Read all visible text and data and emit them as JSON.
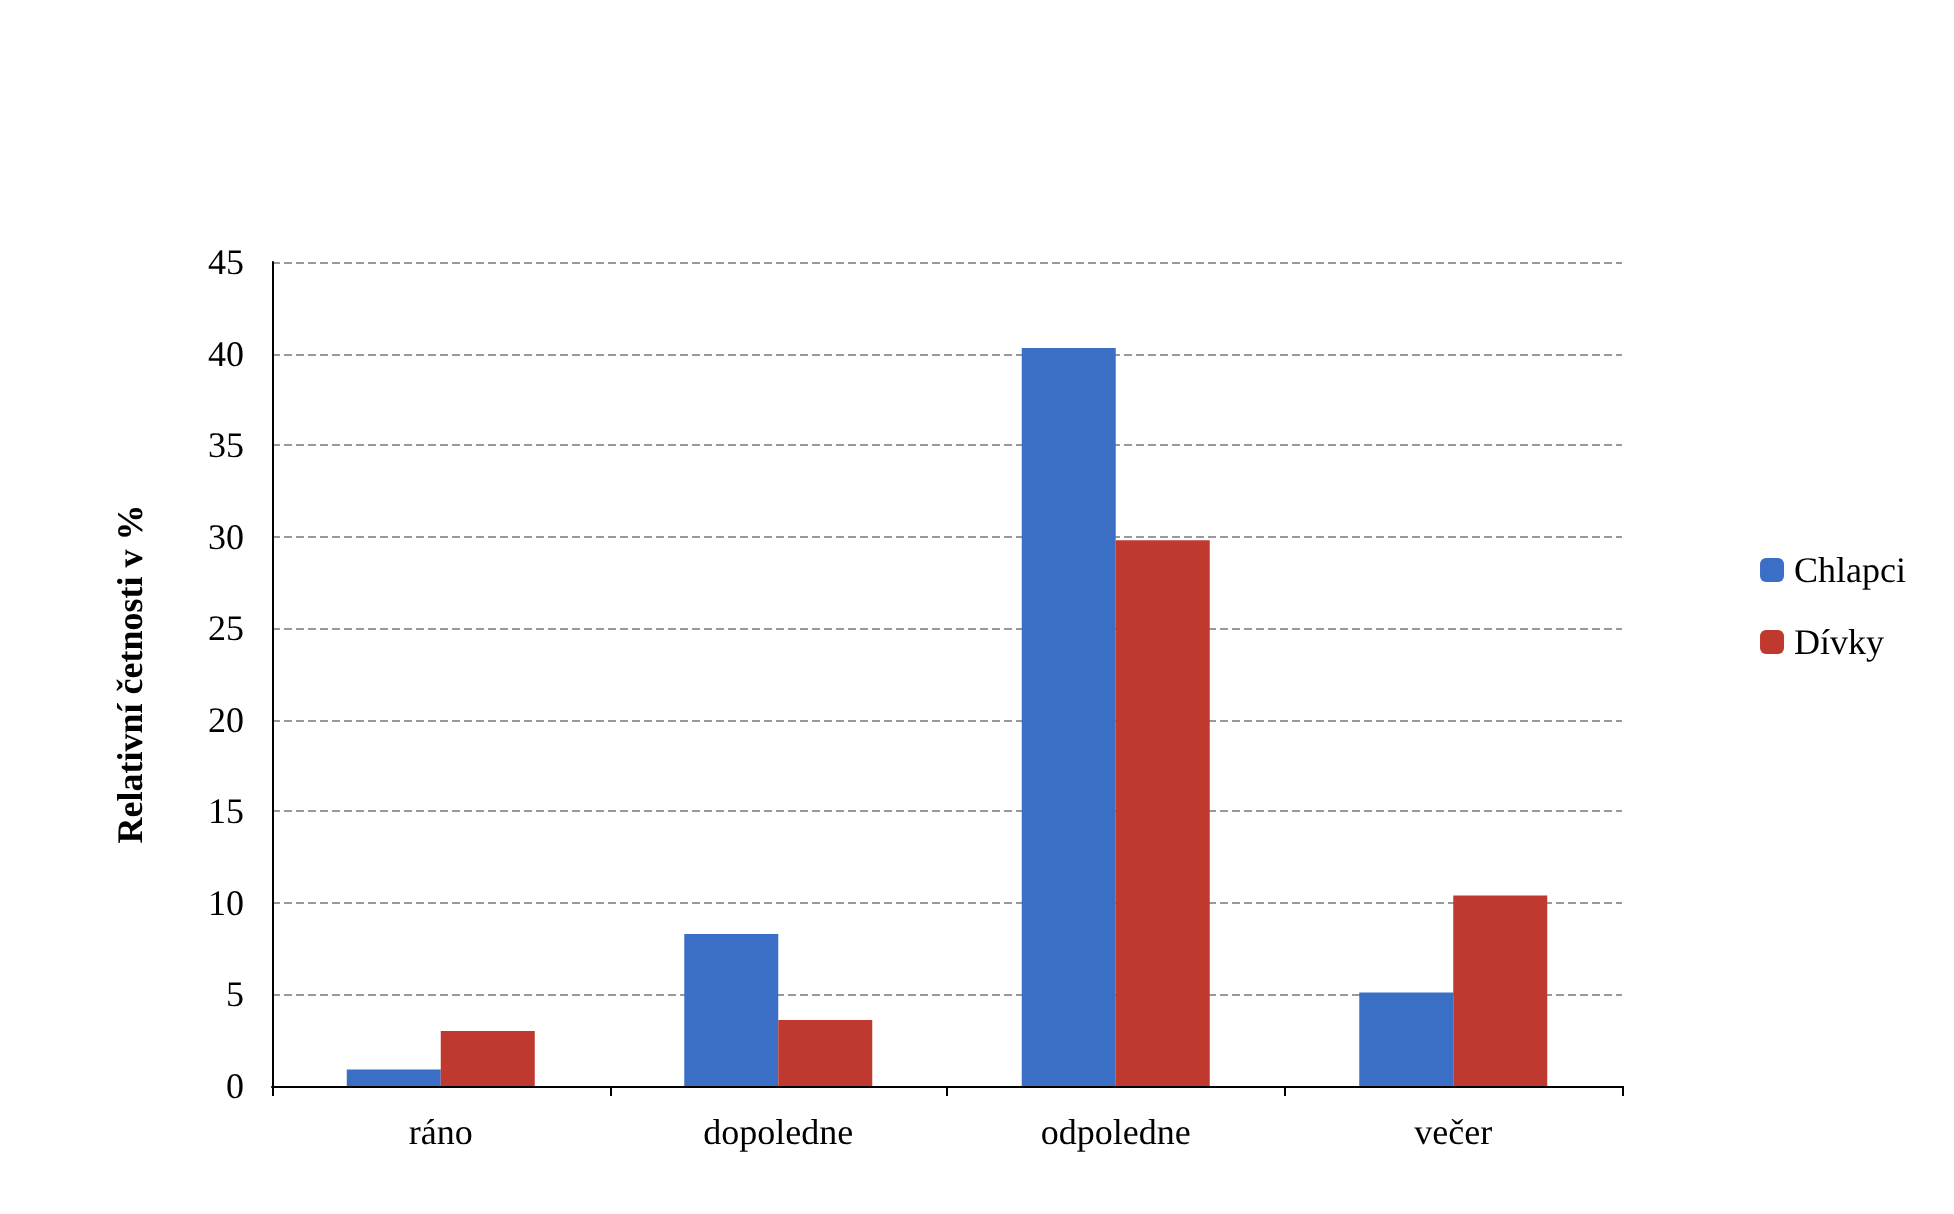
{
  "chart_data": {
    "type": "bar",
    "ylabel": "Relativní četnosti v %",
    "categories": [
      "ráno",
      "dopoledne",
      "odpoledne",
      "večer"
    ],
    "series": [
      {
        "name": "Chlapci",
        "color": "#3b6fc6",
        "values": [
          0.9,
          8.3,
          40.3,
          5.1
        ]
      },
      {
        "name": "Dívky",
        "color": "#c0392e",
        "values": [
          3.0,
          3.6,
          29.8,
          10.4
        ]
      }
    ],
    "ylim": [
      0,
      45
    ],
    "yticks": [
      0,
      5,
      10,
      15,
      20,
      25,
      30,
      35,
      40,
      45
    ],
    "grid": "y",
    "legend": "right"
  }
}
